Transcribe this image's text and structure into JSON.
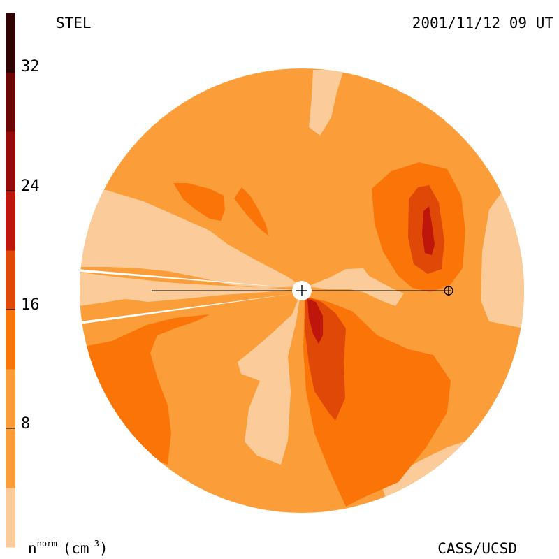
{
  "chart_data": {
    "type": "heatmap",
    "title": "STEL",
    "timestamp": "2001/11/12 09 UT",
    "credit": "CASS/UCSD",
    "colorbar": {
      "label_base": "n",
      "label_sup": "norm",
      "label_units": "(cm",
      "label_units_sup": "-3",
      "label_close": ")",
      "range": [
        0,
        36
      ],
      "ticks": [
        8,
        16,
        24,
        32
      ],
      "tick_labels": [
        "8",
        "16",
        "24",
        "32"
      ],
      "levels": [
        {
          "from": 0,
          "to": 4,
          "color": "#fbcc9a"
        },
        {
          "from": 4,
          "to": 12,
          "color": "#fb9e3a"
        },
        {
          "from": 12,
          "to": 16,
          "color": "#fb7407"
        },
        {
          "from": 16,
          "to": 20,
          "color": "#e04807"
        },
        {
          "from": 20,
          "to": 24,
          "color": "#bf160b"
        },
        {
          "from": 24,
          "to": 28,
          "color": "#960a07"
        },
        {
          "from": 28,
          "to": 32,
          "color": "#6a0604"
        },
        {
          "from": 32,
          "to": 36,
          "color": "#2e0302"
        }
      ]
    },
    "markers": [
      {
        "name": "Sun",
        "symbol": "+"
      },
      {
        "name": "Earth",
        "symbol": "⊕"
      }
    ]
  }
}
